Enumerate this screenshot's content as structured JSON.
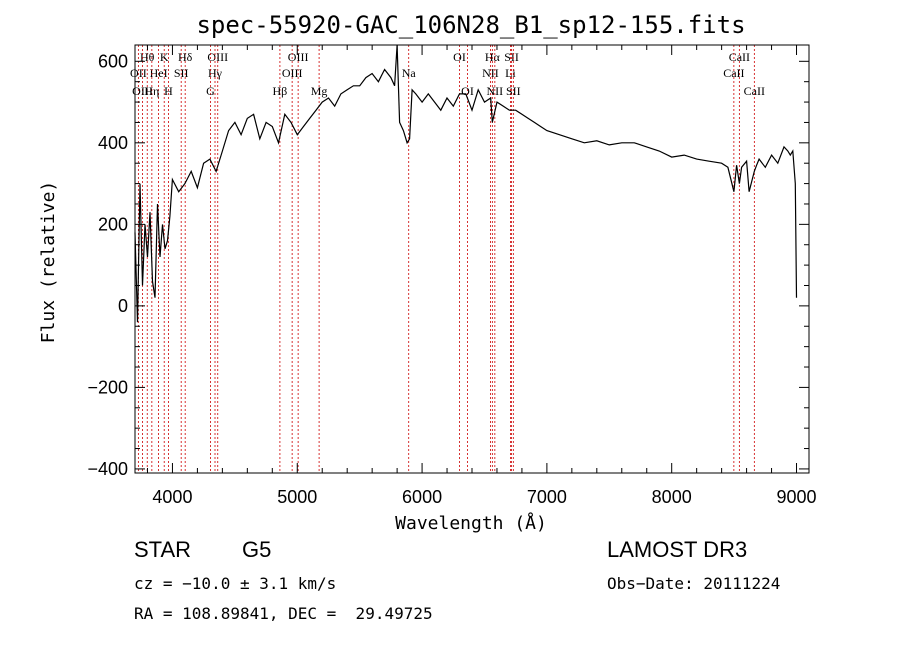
{
  "chart_data": {
    "type": "line",
    "title": "spec-55920-GAC_106N28_B1_sp12-155.fits",
    "xlabel": "Wavelength (Å)",
    "ylabel": "Flux (relative)",
    "xlim": [
      3700,
      9100
    ],
    "ylim": [
      -410,
      640
    ],
    "xticks": [
      4000,
      5000,
      6000,
      7000,
      8000,
      9000
    ],
    "yticks": [
      -400,
      -200,
      0,
      200,
      400,
      600
    ],
    "grid": false,
    "series": [
      {
        "name": "Flux",
        "x": [
          3700,
          3720,
          3740,
          3760,
          3780,
          3800,
          3820,
          3840,
          3860,
          3880,
          3900,
          3920,
          3940,
          3960,
          3980,
          4000,
          4050,
          4100,
          4150,
          4200,
          4250,
          4300,
          4350,
          4400,
          4450,
          4500,
          4550,
          4600,
          4650,
          4700,
          4750,
          4800,
          4850,
          4900,
          4950,
          5000,
          5050,
          5100,
          5150,
          5200,
          5250,
          5300,
          5350,
          5400,
          5450,
          5500,
          5550,
          5600,
          5650,
          5700,
          5750,
          5780,
          5800,
          5820,
          5850,
          5880,
          5900,
          5920,
          5950,
          6000,
          6050,
          6100,
          6150,
          6200,
          6250,
          6300,
          6350,
          6400,
          6450,
          6500,
          6550,
          6563,
          6600,
          6650,
          6700,
          6750,
          6800,
          6850,
          6900,
          6950,
          7000,
          7100,
          7200,
          7300,
          7400,
          7500,
          7600,
          7700,
          7800,
          7900,
          8000,
          8100,
          8200,
          8300,
          8400,
          8450,
          8498,
          8520,
          8542,
          8560,
          8600,
          8620,
          8662,
          8680,
          8700,
          8750,
          8800,
          8850,
          8900,
          8930,
          8950,
          8970,
          8990,
          9000
        ],
        "values": [
          180,
          -40,
          300,
          50,
          200,
          120,
          230,
          60,
          20,
          250,
          120,
          200,
          140,
          160,
          220,
          310,
          280,
          300,
          330,
          290,
          350,
          360,
          330,
          380,
          430,
          450,
          420,
          460,
          470,
          410,
          450,
          440,
          400,
          470,
          450,
          420,
          440,
          460,
          480,
          500,
          510,
          490,
          520,
          530,
          540,
          540,
          560,
          570,
          550,
          580,
          560,
          540,
          640,
          450,
          430,
          400,
          410,
          530,
          520,
          500,
          520,
          500,
          480,
          510,
          490,
          520,
          520,
          480,
          530,
          500,
          510,
          450,
          500,
          490,
          480,
          480,
          470,
          460,
          450,
          440,
          430,
          420,
          410,
          400,
          405,
          395,
          400,
          400,
          390,
          380,
          365,
          370,
          360,
          355,
          350,
          340,
          280,
          345,
          300,
          340,
          355,
          280,
          330,
          345,
          360,
          340,
          370,
          350,
          390,
          380,
          370,
          380,
          300,
          20
        ]
      }
    ],
    "spectral_lines": [
      {
        "label": "Hθ",
        "wavelength": 3798,
        "row": 1
      },
      {
        "label": "OII",
        "wavelength": 3727,
        "row": 2
      },
      {
        "label": "OIII",
        "wavelength": 3760,
        "row": 3
      },
      {
        "label": "K",
        "wavelength": 3934,
        "row": 1
      },
      {
        "label": "HeI",
        "wavelength": 3889,
        "row": 2
      },
      {
        "label": "Hη",
        "wavelength": 3835,
        "row": 3
      },
      {
        "label": "Hδ",
        "wavelength": 4102,
        "row": 1
      },
      {
        "label": "SII",
        "wavelength": 4070,
        "row": 2
      },
      {
        "label": "H",
        "wavelength": 3968,
        "row": 3
      },
      {
        "label": "OIII",
        "wavelength": 4363,
        "row": 1
      },
      {
        "label": "Hγ",
        "wavelength": 4341,
        "row": 2
      },
      {
        "label": "G",
        "wavelength": 4305,
        "row": 3
      },
      {
        "label": "Hβ",
        "wavelength": 4861,
        "row": 3
      },
      {
        "label": "OIII",
        "wavelength": 5007,
        "row": 1
      },
      {
        "label": "OIII",
        "wavelength": 4959,
        "row": 2
      },
      {
        "label": "Mg",
        "wavelength": 5175,
        "row": 3
      },
      {
        "label": "Na",
        "wavelength": 5893,
        "row": 2
      },
      {
        "label": "OI",
        "wavelength": 6300,
        "row": 1
      },
      {
        "label": "OI",
        "wavelength": 6364,
        "row": 3
      },
      {
        "label": "Hα",
        "wavelength": 6563,
        "row": 1
      },
      {
        "label": "NII",
        "wavelength": 6548,
        "row": 2
      },
      {
        "label": "NII",
        "wavelength": 6583,
        "row": 3
      },
      {
        "label": "SII",
        "wavelength": 6717,
        "row": 1
      },
      {
        "label": "Li",
        "wavelength": 6708,
        "row": 2
      },
      {
        "label": "SII",
        "wavelength": 6731,
        "row": 3
      },
      {
        "label": "CaII",
        "wavelength": 8542,
        "row": 1
      },
      {
        "label": "CaII",
        "wavelength": 8498,
        "row": 2
      },
      {
        "label": "CaII",
        "wavelength": 8662,
        "row": 3
      }
    ]
  },
  "info": {
    "class": "STAR",
    "subclass": "G5",
    "survey": "LAMOST DR3",
    "cz": "cz = −10.0 ± 3.1 km/s",
    "obs_date": "Obs−Date: 20111224",
    "coords": "RA = 108.89841, DEC =  29.49725"
  },
  "colors": {
    "axis": "#000000",
    "spectrum": "#000000",
    "line_marker": "#cc0000"
  }
}
